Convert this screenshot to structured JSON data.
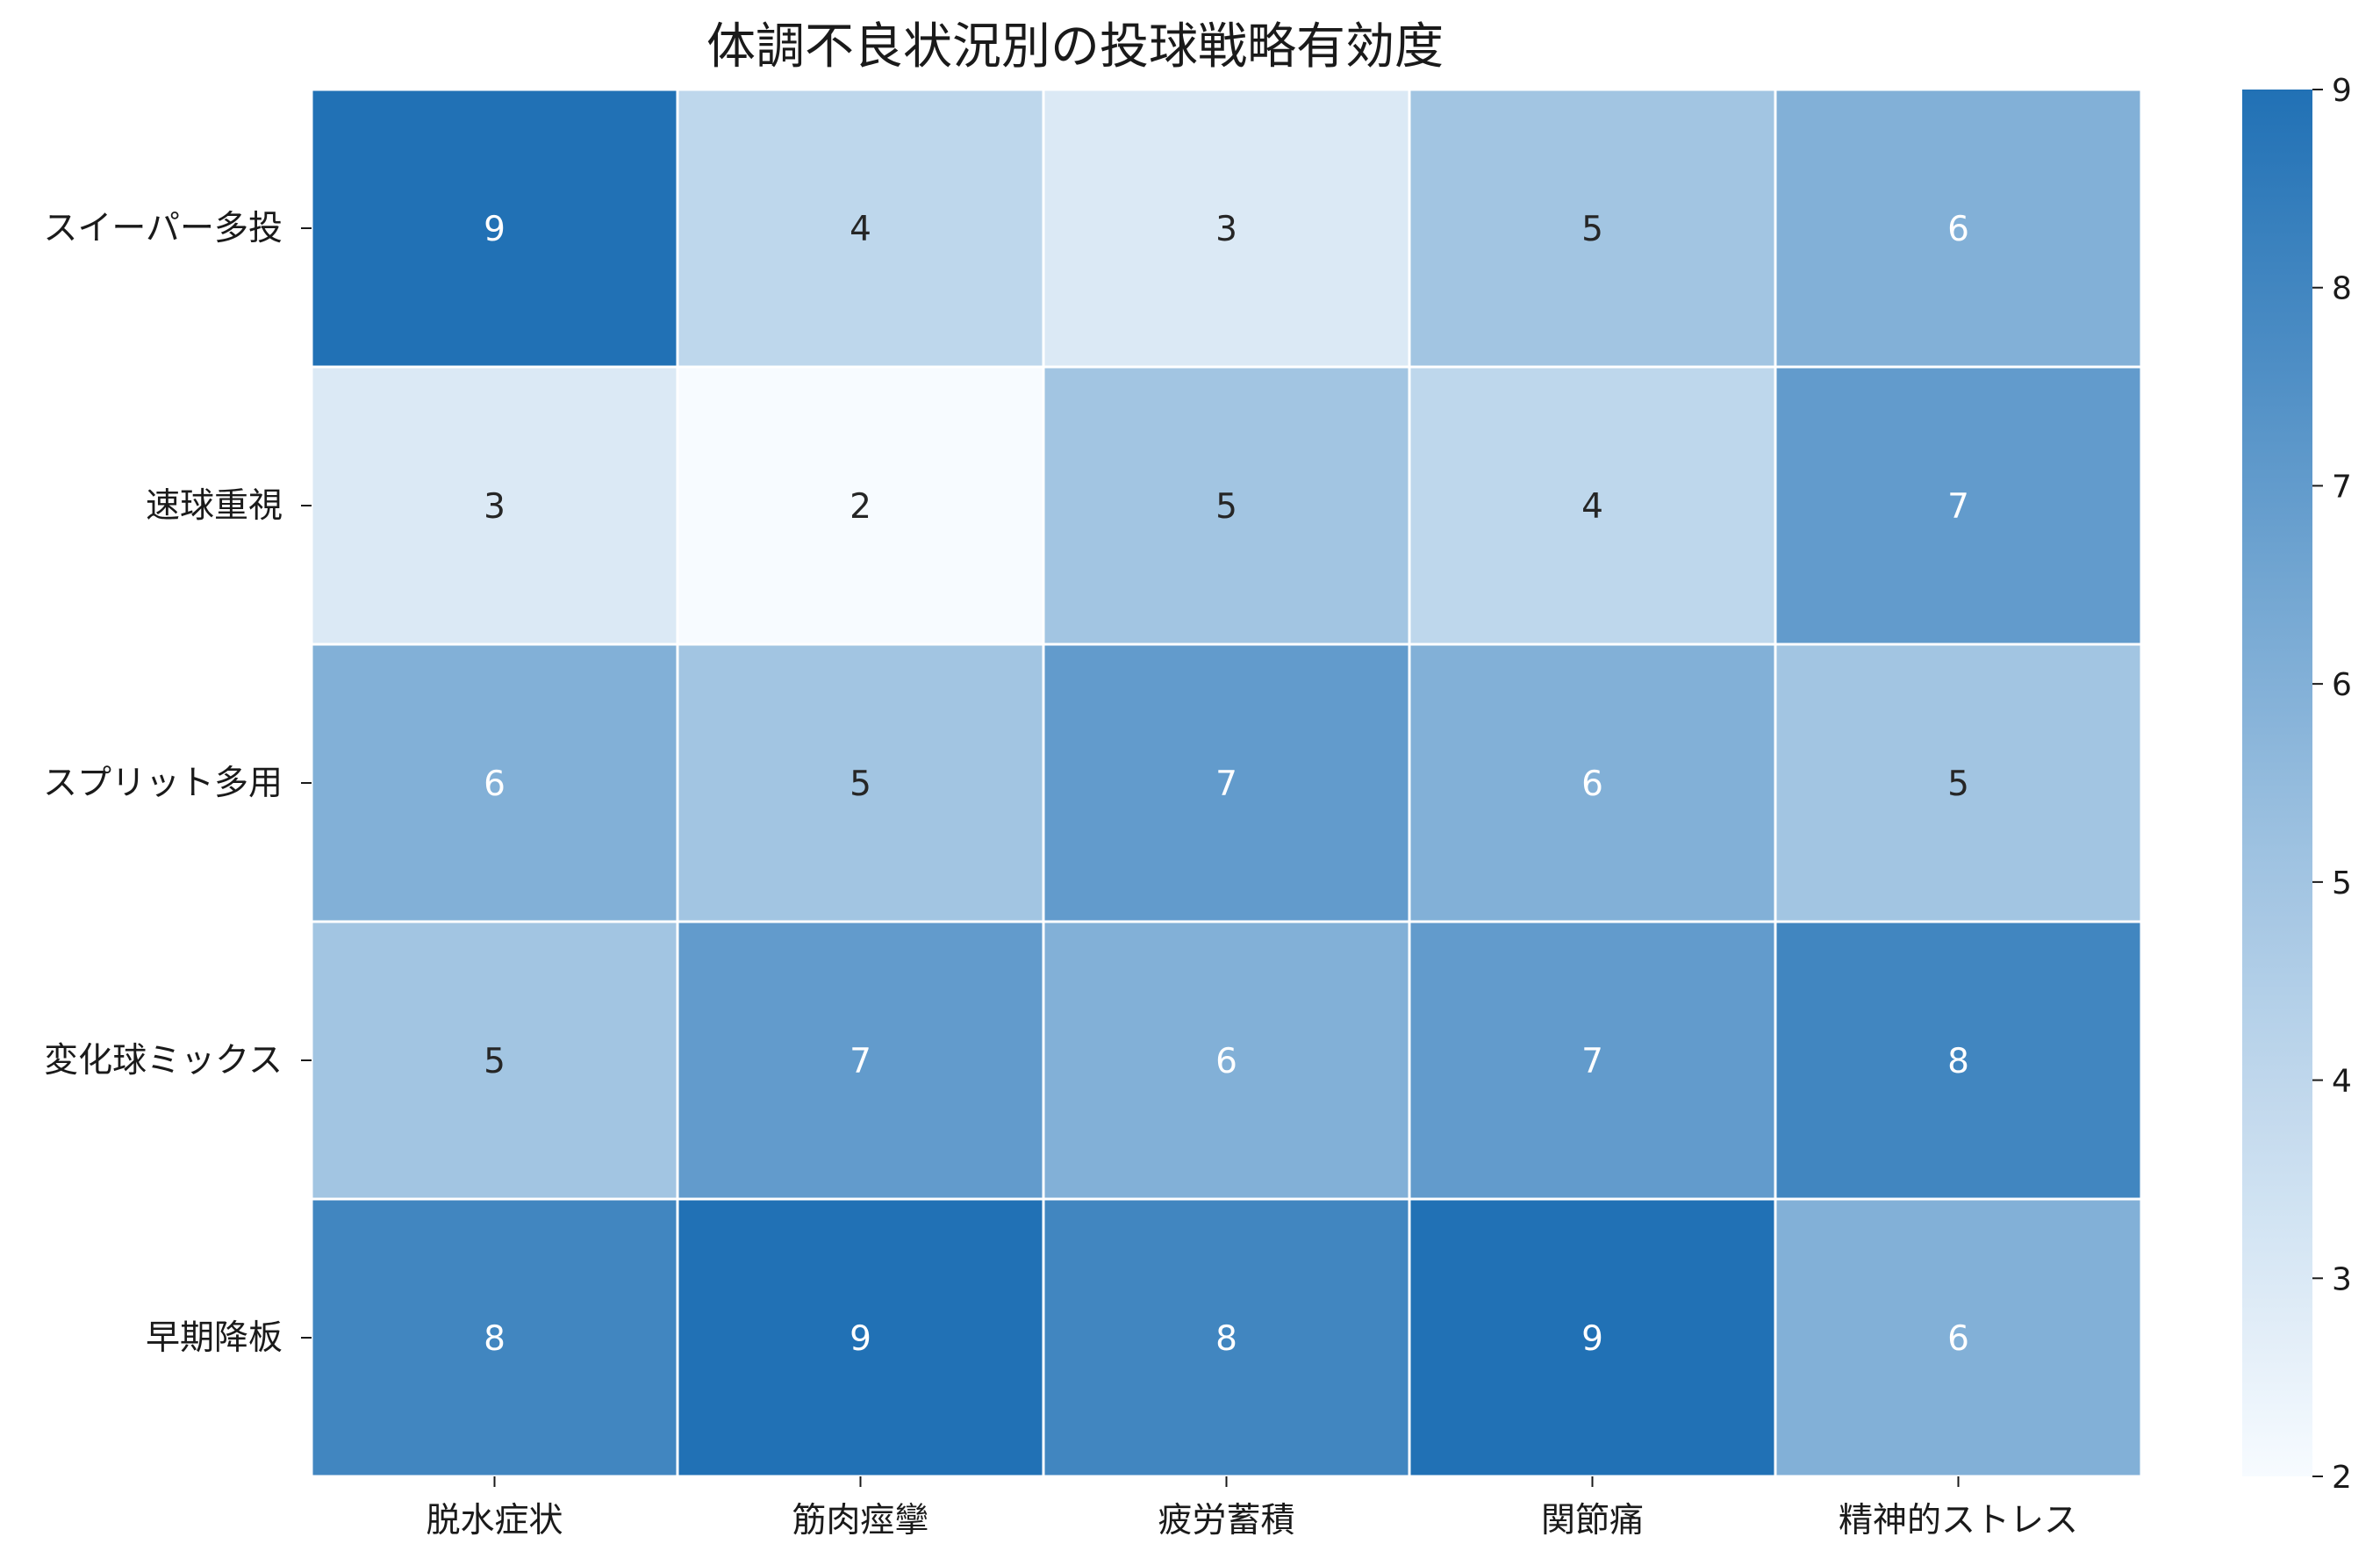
{
  "chart_data": {
    "type": "heatmap",
    "title": "体調不良状況別の投球戦略有効度",
    "xlabel": "",
    "ylabel": "",
    "x_categories": [
      "脱水症状",
      "筋肉痙攣",
      "疲労蓄積",
      "関節痛",
      "精神的ストレス"
    ],
    "y_categories": [
      "スイーパー多投",
      "速球重視",
      "スプリット多用",
      "変化球ミックス",
      "早期降板"
    ],
    "values": [
      [
        9,
        4,
        3,
        5,
        6
      ],
      [
        3,
        2,
        5,
        4,
        7
      ],
      [
        6,
        5,
        7,
        6,
        5
      ],
      [
        5,
        7,
        6,
        7,
        8
      ],
      [
        8,
        9,
        8,
        9,
        6
      ]
    ],
    "annotations": true,
    "colorscale": {
      "name": "Blues",
      "low_color": "#f7fbff",
      "high_color": "#2171b5"
    },
    "vmin": 2,
    "vmax": 9,
    "colorbar_ticks": [
      2,
      3,
      4,
      5,
      6,
      7,
      8,
      9
    ],
    "colorbar_placement": "right"
  }
}
